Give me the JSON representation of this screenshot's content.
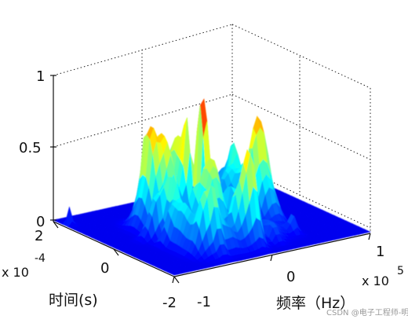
{
  "chart_data": {
    "type": "surface",
    "title": "",
    "xlabel": "频率（Hz）",
    "ylabel": "时间(s)",
    "zlabel": "",
    "x_ticks": [
      "-1",
      "0",
      "1"
    ],
    "x_multiplier": {
      "base": "x 10",
      "exponent": "5"
    },
    "y_ticks": [
      "-2",
      "0",
      "2"
    ],
    "y_multiplier": {
      "base": "x 10",
      "exponent": "-4"
    },
    "z_ticks": [
      "0",
      "0.5",
      "1"
    ],
    "xlim": [
      -100000,
      100000
    ],
    "ylim": [
      -0.0002,
      0.0002
    ],
    "zlim": [
      0,
      1
    ],
    "grid": true,
    "colormap": "jet",
    "peak": {
      "x": -10000,
      "y": 0,
      "z": 1.0
    }
  },
  "watermark": "CSDN @电子工程师-明"
}
